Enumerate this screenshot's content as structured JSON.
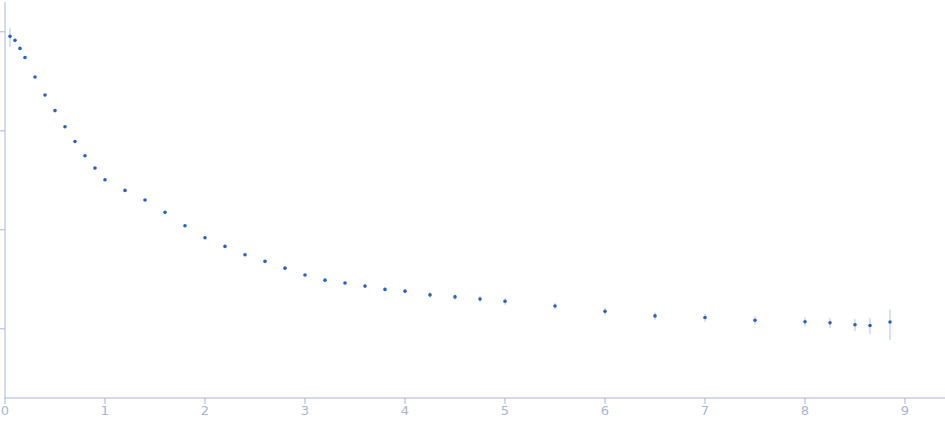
{
  "chart_data": {
    "type": "scatter",
    "x": [
      0.05,
      0.1,
      0.15,
      0.2,
      0.3,
      0.4,
      0.5,
      0.6,
      0.7,
      0.8,
      0.9,
      1.0,
      1.2,
      1.4,
      1.6,
      1.8,
      2.0,
      2.2,
      2.4,
      2.6,
      2.8,
      3.0,
      3.2,
      3.4,
      3.6,
      3.8,
      4.0,
      4.25,
      4.5,
      4.75,
      5.0,
      5.5,
      6.0,
      6.5,
      7.0,
      7.5,
      8.0,
      8.25,
      8.5,
      8.65,
      8.85
    ],
    "values": [
      0.9,
      0.82,
      0.68,
      0.55,
      0.35,
      0.23,
      0.16,
      0.11,
      0.078,
      0.056,
      0.042,
      0.032,
      0.025,
      0.02,
      0.015,
      0.011,
      0.0083,
      0.0068,
      0.0056,
      0.0048,
      0.0041,
      0.0035,
      0.0031,
      0.0029,
      0.0027,
      0.0025,
      0.0024,
      0.0022,
      0.0021,
      0.002,
      0.0019,
      0.0017,
      0.0015,
      0.00135,
      0.0013,
      0.00122,
      0.00118,
      0.00115,
      0.0011,
      0.00108,
      0.00117
    ],
    "errors": [
      0.2,
      0.02,
      0.01,
      0.008,
      0.005,
      0.003,
      0.002,
      0.0012,
      0.0008,
      0.0005,
      0.0004,
      0.0003,
      0.0002,
      0.00015,
      0.0001,
      8e-05,
      6e-05,
      6e-05,
      6e-05,
      6e-05,
      7e-05,
      8e-05,
      9e-05,
      0.0001,
      0.0001,
      0.00011,
      0.00012,
      0.00013,
      0.00014,
      0.00015,
      0.00015,
      0.00013,
      0.00013,
      0.00012,
      0.00012,
      0.00012,
      0.00012,
      0.00013,
      0.00015,
      0.0002,
      0.0004
    ],
    "color": "#2f62b5",
    "xlim": [
      0,
      9.4
    ],
    "xticks": [
      0,
      1,
      2,
      3,
      4,
      5,
      6,
      7,
      8,
      9
    ],
    "ylim": [
      0.0002,
      2
    ],
    "yticks": [
      0.001,
      0.01,
      0.1,
      1
    ],
    "log": "y",
    "tick_labels": "x",
    "marker": "circle"
  }
}
